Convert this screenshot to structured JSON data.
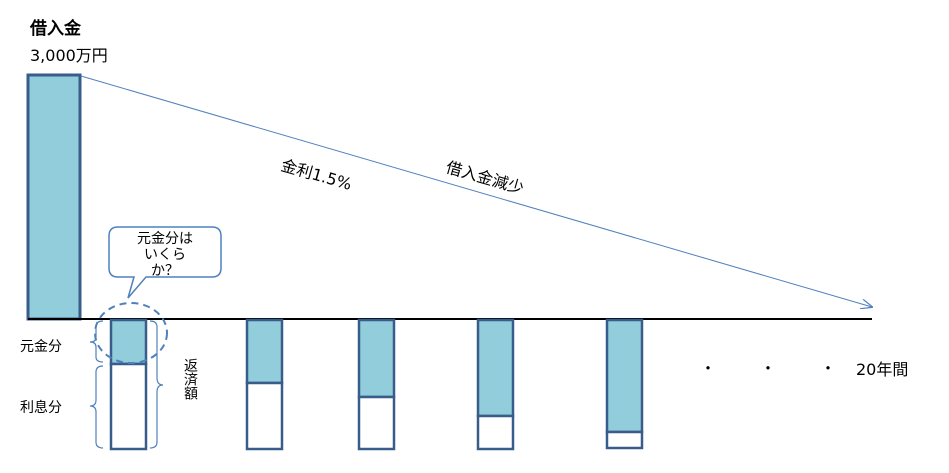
{
  "loan": {
    "title": "借入金",
    "amount": "3,000万円"
  },
  "labels": {
    "interest_rate": "金利1.5%",
    "decrease": "借入金減少",
    "principal": "元金分",
    "interest": "利息分",
    "repayment": "返済額",
    "ellipsis_dots": "・　・　・",
    "period": "20年間"
  },
  "callout": {
    "line1": "元金分は",
    "line2": "いくら",
    "line3": "か？"
  },
  "colors": {
    "bar_fill": "#92cddc",
    "bar_stroke": "#385d8a",
    "arrow": "#4f81bd",
    "baseline": "#000000"
  }
}
